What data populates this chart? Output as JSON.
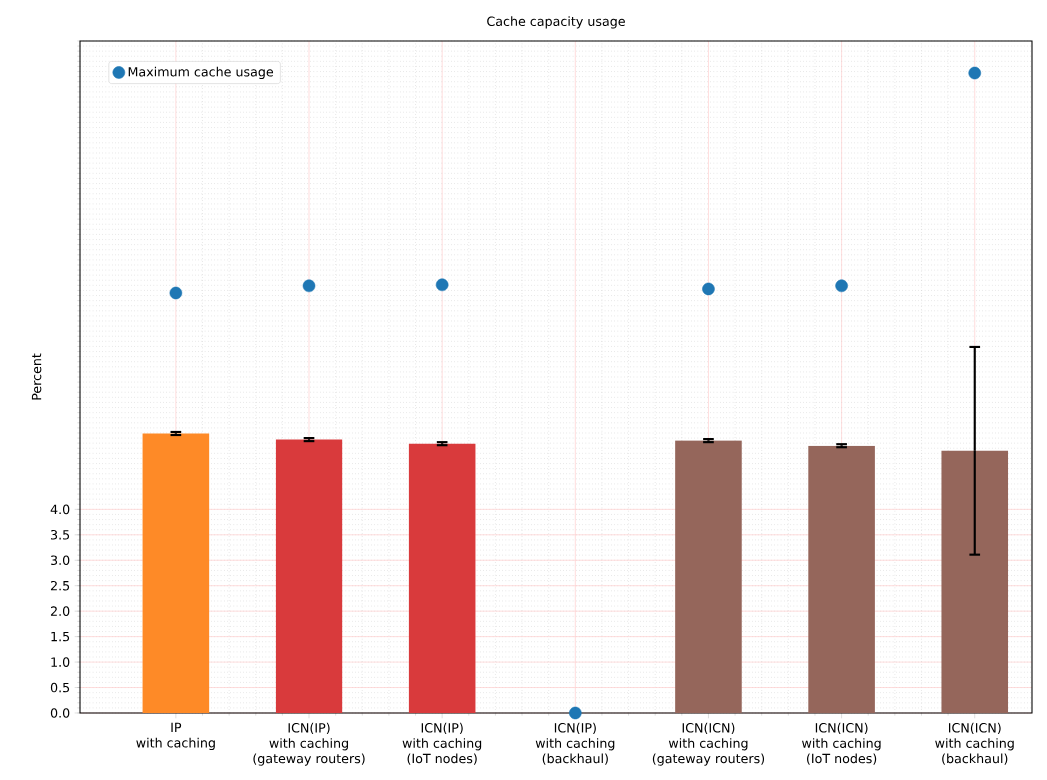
{
  "chart_data": {
    "type": "bar",
    "title": "Cache capacity usage",
    "ylabel": "Percent",
    "categories": [
      "IP\nwith caching",
      "ICN(IP)\nwith caching\n(gateway routers)",
      "ICN(IP)\nwith caching\n(IoT nodes)",
      "ICN(IP)\nwith caching\n(backhaul)",
      "ICN(ICN)\nwith caching\n(gateway routers)",
      "ICN(ICN)\nwith caching\n(IoT nodes)",
      "ICN(ICN)\nwith caching\n(backhaul)"
    ],
    "series": [
      {
        "values": [
          5.49,
          5.37,
          5.29,
          0,
          5.35,
          5.25,
          5.15
        ],
        "colors": [
          "#fe8a27",
          "#d93a3c",
          "#d93a3c",
          "#d93a3c",
          "#95665b",
          "#95665b",
          "#95665b"
        ],
        "errors": [
          0.03,
          0.03,
          0.03,
          null,
          0.03,
          0.03,
          2.04
        ]
      },
      {
        "type": "scatter",
        "name": "Maximum cache usage",
        "color": "#1f77b4",
        "values": [
          8.25,
          8.39,
          8.41,
          0,
          8.33,
          8.39,
          12.57
        ]
      }
    ],
    "ylim": [
      0,
      13.2
    ],
    "yticks": [
      {
        "value": 0,
        "label": "0.0"
      },
      0.5,
      {
        "value": 1,
        "label": "1.0"
      },
      1.5,
      {
        "value": 2,
        "label": "2.0"
      },
      2.5,
      {
        "value": 3,
        "label": "3.0"
      },
      3.5,
      {
        "value": 4,
        "label": "4.0"
      }
    ],
    "grid": true,
    "legend": "top left"
  }
}
